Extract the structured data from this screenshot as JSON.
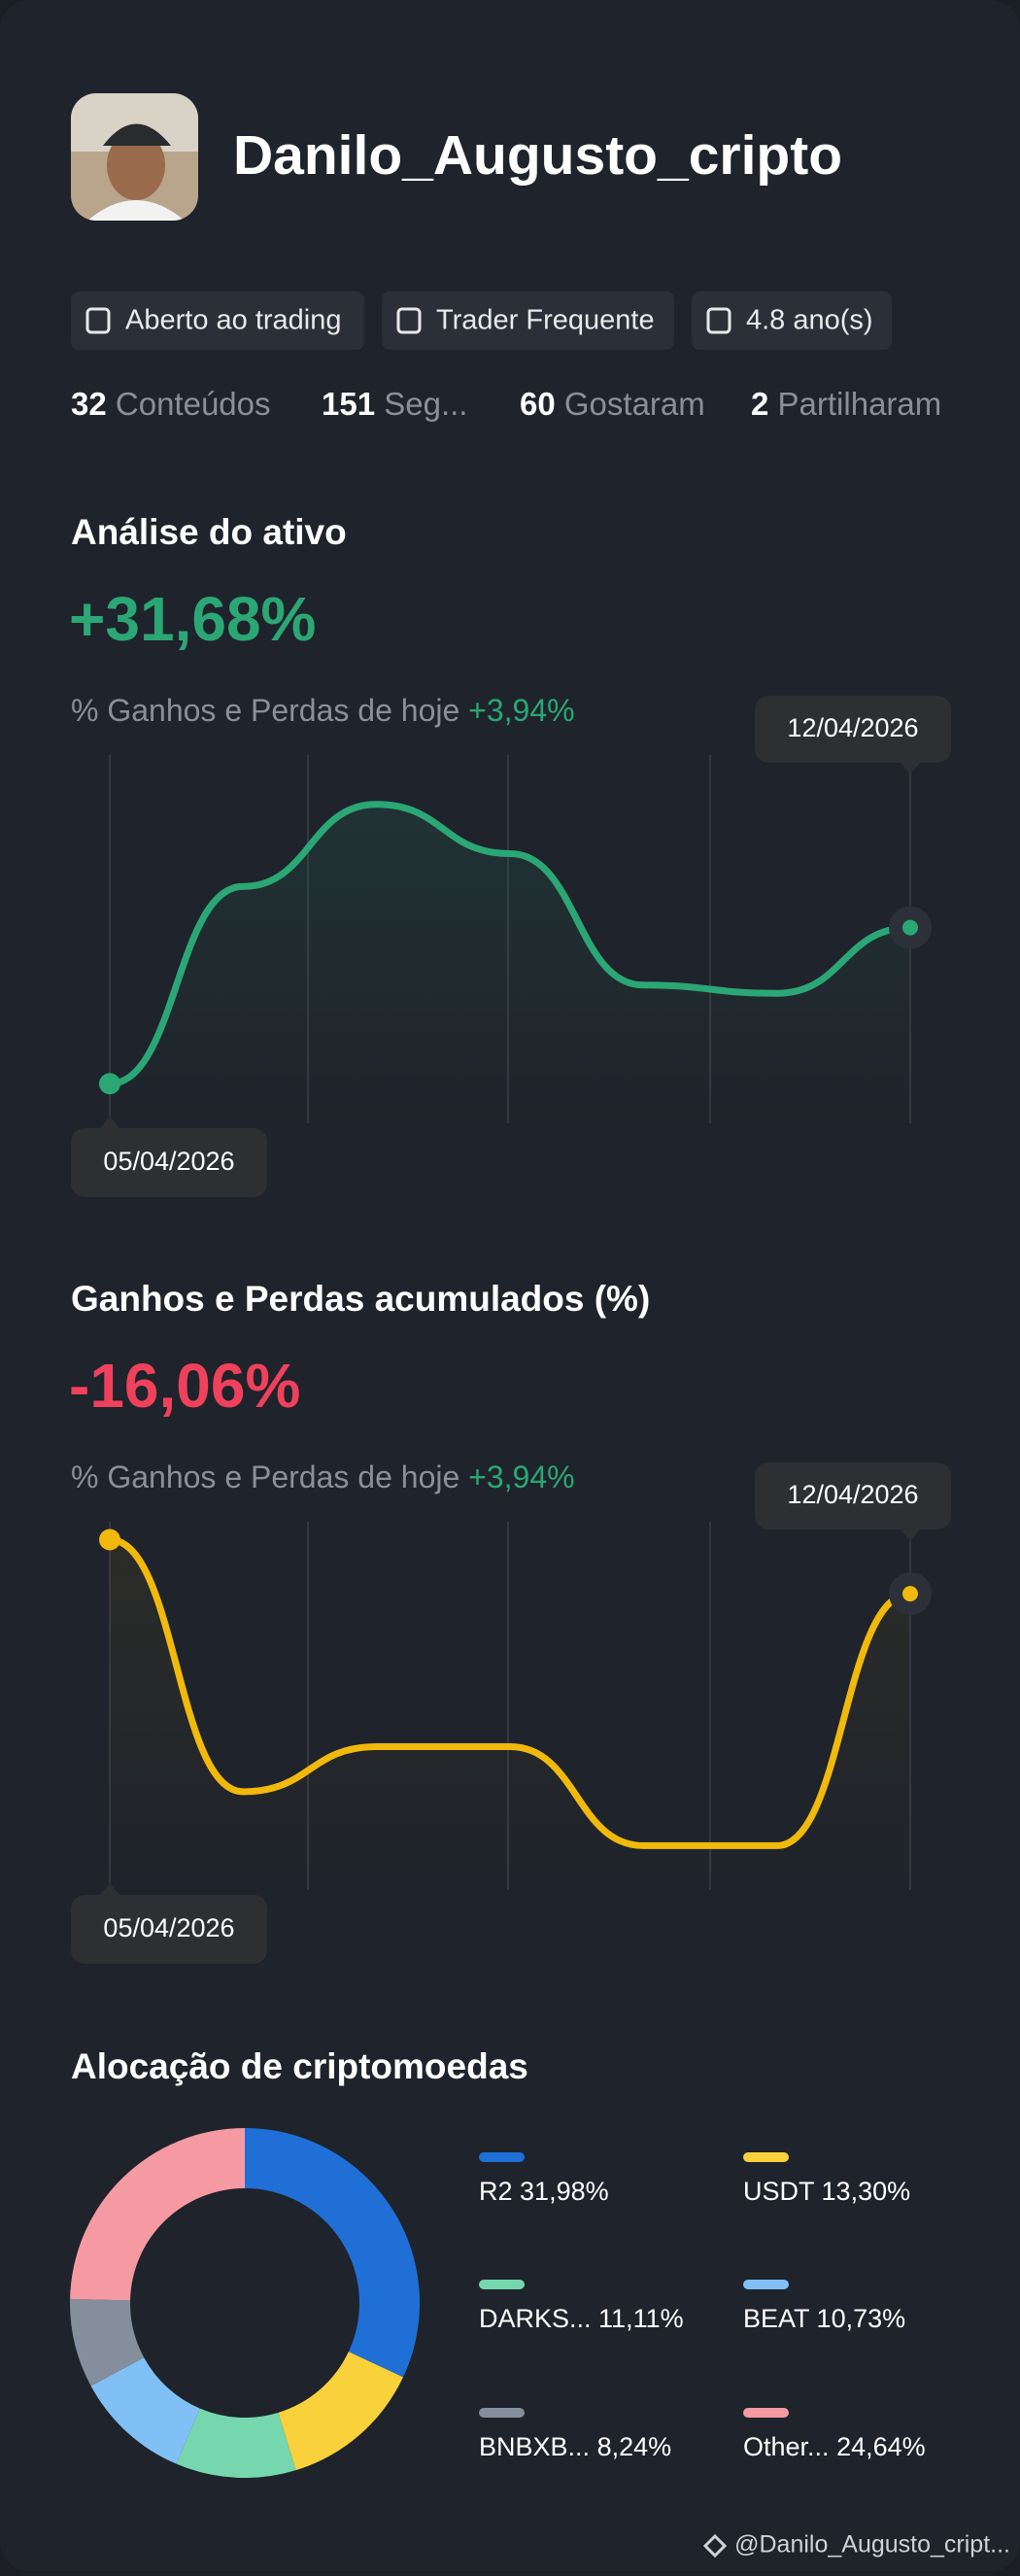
{
  "profile": {
    "name": "Danilo_Augusto_cripto",
    "tags": [
      "Aberto ao trading",
      "Trader Frequente",
      "4.8 ano(s)"
    ],
    "stats": [
      {
        "count": 32,
        "label": "Conteúdos"
      },
      {
        "count": 151,
        "label": "Seg..."
      },
      {
        "count": 60,
        "label": "Gostaram"
      },
      {
        "count": 2,
        "label": "Partilharam"
      }
    ]
  },
  "asset_analysis": {
    "title": "Análise do ativo",
    "value": "+31,68%",
    "subtitle": "% Ganhos e Perdas de hoje",
    "today_change": "+3,94%",
    "start_date": "05/04/2026",
    "end_date": "12/04/2026",
    "chart": {
      "type": "line",
      "color": "#2aa775",
      "values": [
        0,
        12,
        17,
        14,
        6,
        5.5,
        9.5
      ],
      "ylim": [
        -3,
        20
      ]
    }
  },
  "cumulative": {
    "title": "Ganhos e Perdas acumulados (%)",
    "value": "-16,06%",
    "subtitle": "% Ganhos e Perdas de hoje",
    "today_change": "+3,94%",
    "start_date": "05/04/2026",
    "end_date": "12/04/2026",
    "chart": {
      "type": "line",
      "color": "#f0b90b",
      "values": [
        0,
        -14,
        -11.5,
        -11.5,
        -17,
        -17,
        -3
      ],
      "ylim": [
        -20,
        1
      ]
    }
  },
  "allocation": {
    "title": "Alocação de criptomoedas",
    "chart": {
      "type": "pie",
      "categories": [
        "R2",
        "USDT",
        "DARKS...",
        "BEAT",
        "BNBXB...",
        "Other..."
      ],
      "values": [
        31.98,
        13.3,
        11.11,
        10.73,
        8.24,
        24.64
      ],
      "value_labels": [
        "31,98%",
        "13,30%",
        "11,11%",
        "10,73%",
        "8,24%",
        "24,64%"
      ],
      "colors": [
        "#1f6fd6",
        "#f9d13b",
        "#76d7ae",
        "#80c0f5",
        "#858e9c",
        "#f59aa3"
      ]
    }
  },
  "footer": {
    "handle": "@Danilo_Augusto_cript..."
  }
}
